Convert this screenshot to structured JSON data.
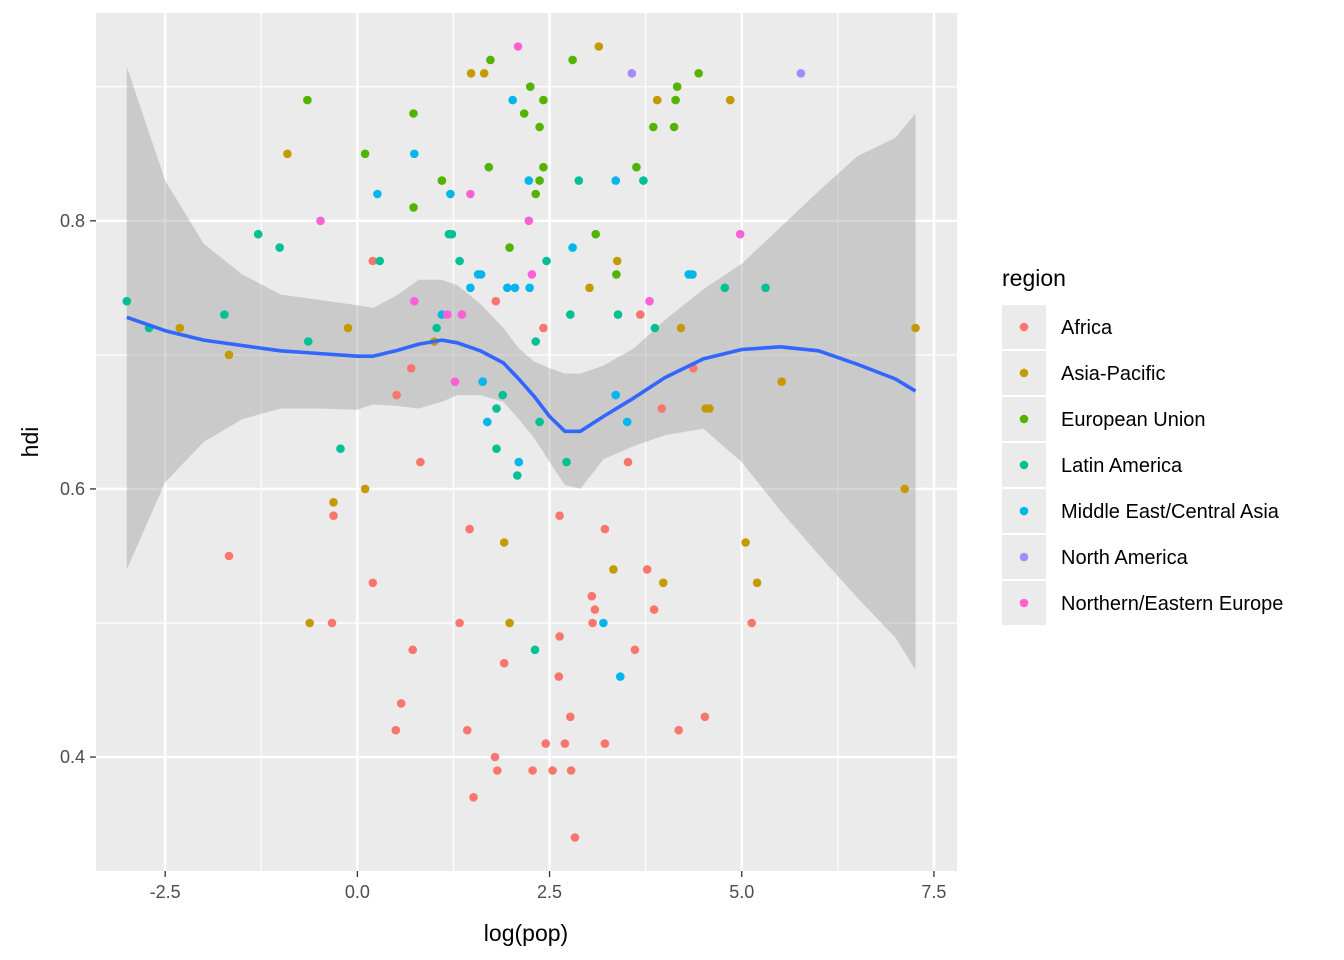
{
  "chart_data": {
    "type": "scatter",
    "title": "",
    "xlabel": "log(pop)",
    "ylabel": "hdi",
    "xlim": [
      -3.4,
      7.8
    ],
    "ylim": [
      0.315,
      0.955
    ],
    "x_ticks": [
      -2.5,
      0.0,
      2.5,
      5.0,
      7.5
    ],
    "x_tick_labels": [
      "-2.5",
      "0.0",
      "2.5",
      "5.0",
      "7.5"
    ],
    "y_ticks": [
      0.4,
      0.6,
      0.8
    ],
    "y_tick_labels": [
      "0.4",
      "0.6",
      "0.8"
    ],
    "grid": true,
    "legend": {
      "title": "region",
      "placement": "right"
    },
    "series": [
      {
        "name": "Africa",
        "color": "#F8766D",
        "points": [
          [
            -1.67,
            0.55
          ],
          [
            -0.33,
            0.5
          ],
          [
            -0.31,
            0.58
          ],
          [
            0.2,
            0.53
          ],
          [
            0.51,
            0.67
          ],
          [
            0.5,
            0.42
          ],
          [
            0.57,
            0.44
          ],
          [
            0.7,
            0.69
          ],
          [
            0.72,
            0.48
          ],
          [
            0.82,
            0.62
          ],
          [
            0.2,
            0.77
          ],
          [
            1.33,
            0.5
          ],
          [
            1.43,
            0.42
          ],
          [
            1.46,
            0.57
          ],
          [
            1.51,
            0.37
          ],
          [
            1.8,
            0.74
          ],
          [
            1.79,
            0.4
          ],
          [
            1.82,
            0.39
          ],
          [
            1.91,
            0.47
          ],
          [
            2.28,
            0.39
          ],
          [
            2.42,
            0.72
          ],
          [
            2.45,
            0.41
          ],
          [
            2.54,
            0.39
          ],
          [
            2.63,
            0.49
          ],
          [
            2.63,
            0.58
          ],
          [
            2.62,
            0.46
          ],
          [
            2.7,
            0.41
          ],
          [
            2.77,
            0.43
          ],
          [
            2.78,
            0.39
          ],
          [
            2.83,
            0.34
          ],
          [
            3.05,
            0.52
          ],
          [
            3.09,
            0.51
          ],
          [
            3.06,
            0.5
          ],
          [
            3.22,
            0.57
          ],
          [
            3.22,
            0.41
          ],
          [
            3.52,
            0.62
          ],
          [
            3.61,
            0.48
          ],
          [
            3.68,
            0.73
          ],
          [
            3.77,
            0.54
          ],
          [
            3.86,
            0.51
          ],
          [
            3.96,
            0.66
          ],
          [
            4.18,
            0.42
          ],
          [
            4.37,
            0.69
          ],
          [
            4.52,
            0.43
          ],
          [
            5.13,
            0.5
          ]
        ]
      },
      {
        "name": "Asia-Pacific",
        "color": "#C49A00",
        "points": [
          [
            -2.31,
            0.72
          ],
          [
            -1.67,
            0.7
          ],
          [
            -0.91,
            0.85
          ],
          [
            -0.62,
            0.5
          ],
          [
            -0.31,
            0.59
          ],
          [
            -0.12,
            0.72
          ],
          [
            0.1,
            0.6
          ],
          [
            1.0,
            0.71
          ],
          [
            1.48,
            0.91
          ],
          [
            1.65,
            0.91
          ],
          [
            1.91,
            0.56
          ],
          [
            1.98,
            0.5
          ],
          [
            3.02,
            0.75
          ],
          [
            3.14,
            0.93
          ],
          [
            3.33,
            0.54
          ],
          [
            3.38,
            0.77
          ],
          [
            3.9,
            0.89
          ],
          [
            3.98,
            0.53
          ],
          [
            4.21,
            0.72
          ],
          [
            4.53,
            0.66
          ],
          [
            4.58,
            0.66
          ],
          [
            4.85,
            0.89
          ],
          [
            5.05,
            0.56
          ],
          [
            5.2,
            0.53
          ],
          [
            5.52,
            0.68
          ],
          [
            7.12,
            0.6
          ],
          [
            7.26,
            0.72
          ]
        ]
      },
      {
        "name": "European Union",
        "color": "#53B400",
        "points": [
          [
            -0.65,
            0.89
          ],
          [
            0.1,
            0.85
          ],
          [
            0.73,
            0.81
          ],
          [
            0.73,
            0.88
          ],
          [
            1.1,
            0.83
          ],
          [
            1.71,
            0.84
          ],
          [
            1.73,
            0.92
          ],
          [
            1.98,
            0.78
          ],
          [
            2.17,
            0.88
          ],
          [
            2.25,
            0.9
          ],
          [
            2.32,
            0.82
          ],
          [
            2.37,
            0.87
          ],
          [
            2.37,
            0.83
          ],
          [
            2.42,
            0.84
          ],
          [
            2.42,
            0.89
          ],
          [
            2.8,
            0.92
          ],
          [
            3.1,
            0.79
          ],
          [
            3.37,
            0.76
          ],
          [
            3.63,
            0.84
          ],
          [
            3.85,
            0.87
          ],
          [
            4.12,
            0.87
          ],
          [
            4.14,
            0.89
          ],
          [
            4.16,
            0.9
          ],
          [
            4.44,
            0.91
          ]
        ]
      },
      {
        "name": "Latin America",
        "color": "#00C094",
        "points": [
          [
            -3.0,
            0.74
          ],
          [
            -2.71,
            0.72
          ],
          [
            -1.73,
            0.73
          ],
          [
            -1.29,
            0.79
          ],
          [
            -1.01,
            0.78
          ],
          [
            -0.64,
            0.71
          ],
          [
            -0.22,
            0.63
          ],
          [
            0.29,
            0.77
          ],
          [
            1.03,
            0.72
          ],
          [
            1.19,
            0.79
          ],
          [
            1.23,
            0.79
          ],
          [
            1.33,
            0.77
          ],
          [
            1.81,
            0.66
          ],
          [
            1.81,
            0.63
          ],
          [
            1.89,
            0.67
          ],
          [
            2.08,
            0.61
          ],
          [
            2.32,
            0.71
          ],
          [
            2.31,
            0.48
          ],
          [
            2.37,
            0.65
          ],
          [
            2.46,
            0.77
          ],
          [
            2.72,
            0.62
          ],
          [
            2.77,
            0.73
          ],
          [
            2.88,
            0.83
          ],
          [
            3.39,
            0.73
          ],
          [
            3.72,
            0.83
          ],
          [
            3.87,
            0.72
          ],
          [
            4.78,
            0.75
          ],
          [
            5.31,
            0.75
          ]
        ]
      },
      {
        "name": "Middle East/Central Asia",
        "color": "#00B6EB",
        "points": [
          [
            0.26,
            0.82
          ],
          [
            0.74,
            0.85
          ],
          [
            1.1,
            0.73
          ],
          [
            1.21,
            0.82
          ],
          [
            1.47,
            0.75
          ],
          [
            1.57,
            0.76
          ],
          [
            1.61,
            0.76
          ],
          [
            1.63,
            0.68
          ],
          [
            1.69,
            0.65
          ],
          [
            1.95,
            0.75
          ],
          [
            2.02,
            0.89
          ],
          [
            2.05,
            0.75
          ],
          [
            2.1,
            0.62
          ],
          [
            2.23,
            0.83
          ],
          [
            2.24,
            0.75
          ],
          [
            2.8,
            0.78
          ],
          [
            3.2,
            0.5
          ],
          [
            3.36,
            0.67
          ],
          [
            3.36,
            0.83
          ],
          [
            3.42,
            0.46
          ],
          [
            3.51,
            0.65
          ],
          [
            4.31,
            0.76
          ],
          [
            4.36,
            0.76
          ]
        ]
      },
      {
        "name": "North America",
        "color": "#A58AFF",
        "points": [
          [
            3.57,
            0.91
          ],
          [
            5.77,
            0.91
          ]
        ]
      },
      {
        "name": "Northern/Eastern Europe",
        "color": "#FB61D7",
        "points": [
          [
            -0.48,
            0.8
          ],
          [
            0.74,
            0.74
          ],
          [
            1.17,
            0.73
          ],
          [
            1.27,
            0.68
          ],
          [
            1.36,
            0.73
          ],
          [
            1.47,
            0.82
          ],
          [
            2.09,
            0.93
          ],
          [
            2.23,
            0.8
          ],
          [
            2.27,
            0.76
          ],
          [
            3.8,
            0.74
          ],
          [
            4.98,
            0.79
          ]
        ]
      }
    ],
    "smooth": {
      "name": "loess",
      "color": "#3366FF",
      "fill": "#999999",
      "points": [
        [
          -3.0,
          0.728,
          0.54,
          0.915
        ],
        [
          -2.5,
          0.718,
          0.605,
          0.83
        ],
        [
          -2.0,
          0.711,
          0.635,
          0.783
        ],
        [
          -1.5,
          0.707,
          0.652,
          0.76
        ],
        [
          -1.0,
          0.703,
          0.66,
          0.745
        ],
        [
          -0.5,
          0.701,
          0.66,
          0.741
        ],
        [
          0.0,
          0.699,
          0.659,
          0.737
        ],
        [
          0.2,
          0.699,
          0.663,
          0.735
        ],
        [
          0.5,
          0.703,
          0.662,
          0.744
        ],
        [
          0.8,
          0.708,
          0.66,
          0.756
        ],
        [
          1.1,
          0.711,
          0.665,
          0.756
        ],
        [
          1.3,
          0.709,
          0.67,
          0.752
        ],
        [
          1.6,
          0.703,
          0.67,
          0.738
        ],
        [
          1.9,
          0.694,
          0.665,
          0.72
        ],
        [
          2.1,
          0.682,
          0.652,
          0.705
        ],
        [
          2.3,
          0.669,
          0.638,
          0.695
        ],
        [
          2.5,
          0.654,
          0.62,
          0.69
        ],
        [
          2.7,
          0.643,
          0.603,
          0.686
        ],
        [
          2.9,
          0.643,
          0.6,
          0.686
        ],
        [
          3.2,
          0.654,
          0.622,
          0.692
        ],
        [
          3.6,
          0.668,
          0.632,
          0.705
        ],
        [
          4.0,
          0.683,
          0.64,
          0.726
        ],
        [
          4.5,
          0.697,
          0.645,
          0.749
        ],
        [
          5.0,
          0.704,
          0.62,
          0.768
        ],
        [
          5.5,
          0.706,
          0.584,
          0.795
        ],
        [
          6.0,
          0.703,
          0.551,
          0.822
        ],
        [
          6.5,
          0.693,
          0.519,
          0.848
        ],
        [
          7.0,
          0.682,
          0.489,
          0.862
        ],
        [
          7.26,
          0.673,
          0.465,
          0.88
        ]
      ]
    }
  }
}
